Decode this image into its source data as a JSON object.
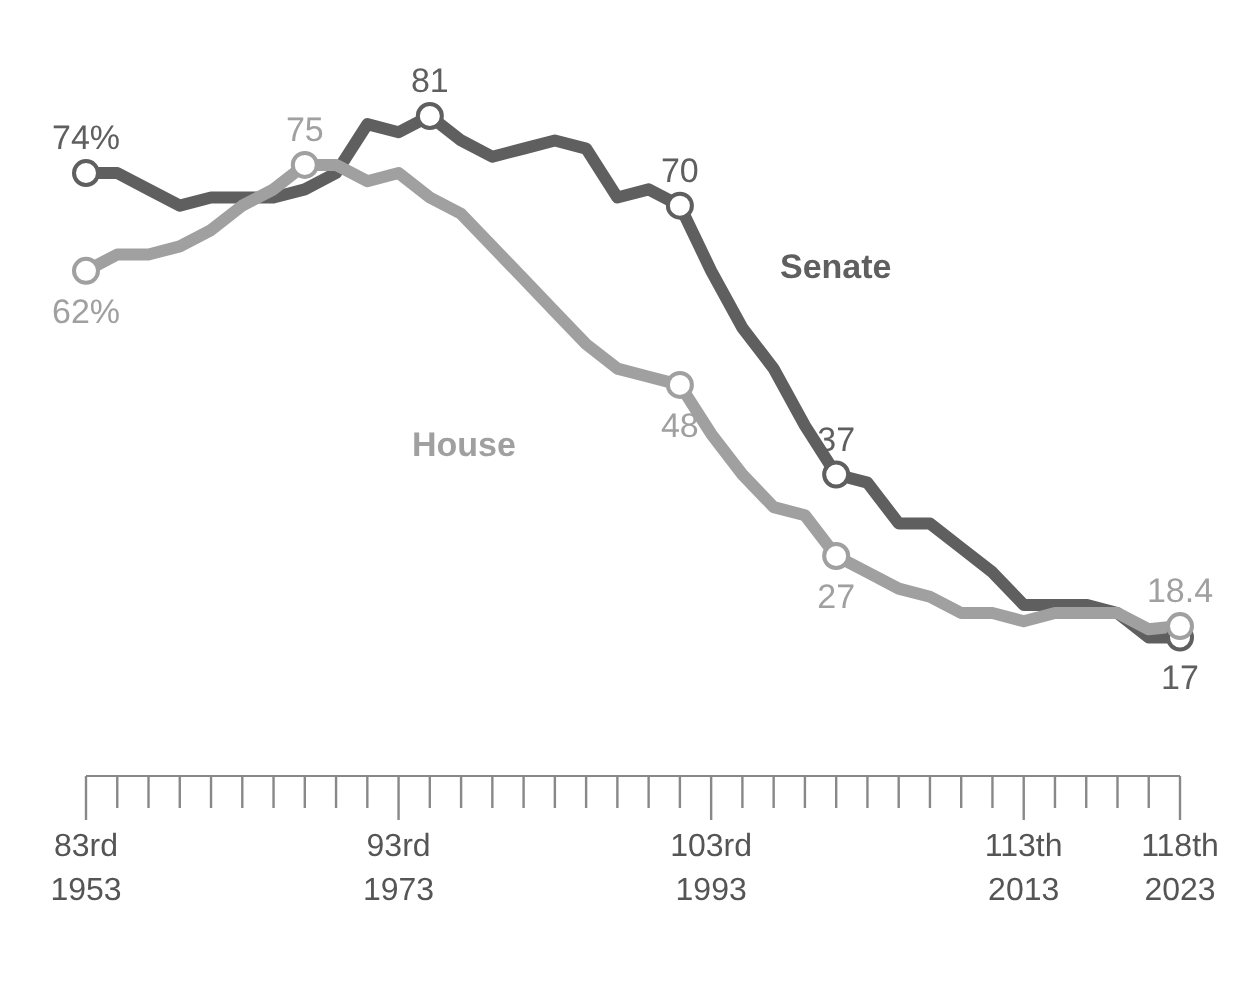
{
  "chart_data": {
    "type": "line",
    "legend": false,
    "grid": false,
    "line_style": "solid",
    "categories": [
      "83rd\n1953",
      null,
      null,
      null,
      null,
      null,
      null,
      null,
      null,
      null,
      "93rd\n1973",
      null,
      null,
      null,
      null,
      null,
      null,
      null,
      null,
      null,
      "103rd\n1993",
      null,
      null,
      null,
      null,
      null,
      null,
      null,
      null,
      null,
      "113th\n2013",
      null,
      null,
      null,
      null,
      "118th\n2023"
    ],
    "series": [
      {
        "name": "Senate",
        "color": "#5f5f5f",
        "values": [
          74,
          74,
          72,
          70,
          71,
          71,
          71,
          72,
          74,
          80,
          79,
          81,
          78,
          76,
          77,
          78,
          77,
          71,
          72,
          70,
          62,
          55,
          50,
          43,
          37,
          36,
          31,
          31,
          28,
          25,
          21,
          21,
          21,
          20,
          17,
          17
        ],
        "value_labels": [
          "74%",
          null,
          null,
          null,
          null,
          null,
          null,
          null,
          null,
          null,
          null,
          "81",
          null,
          null,
          null,
          null,
          null,
          null,
          null,
          "70",
          null,
          null,
          null,
          null,
          "37",
          null,
          null,
          null,
          null,
          null,
          null,
          null,
          null,
          null,
          null,
          "17"
        ]
      },
      {
        "name": "House",
        "color": "#a0a0a0",
        "values": [
          62,
          64,
          64,
          65,
          67,
          70,
          72,
          75,
          75,
          73,
          74,
          71,
          69,
          65,
          61,
          57,
          53,
          50,
          49,
          48,
          42,
          37,
          33,
          32,
          27,
          25,
          23,
          22,
          20,
          20,
          19,
          20,
          20,
          20,
          18,
          18.4
        ],
        "value_labels": [
          "62%",
          null,
          null,
          null,
          null,
          null,
          null,
          "75",
          null,
          null,
          null,
          null,
          null,
          null,
          null,
          null,
          null,
          null,
          null,
          "48",
          null,
          null,
          null,
          null,
          "27",
          null,
          null,
          null,
          null,
          null,
          null,
          null,
          null,
          null,
          null,
          "18.4"
        ]
      }
    ]
  }
}
